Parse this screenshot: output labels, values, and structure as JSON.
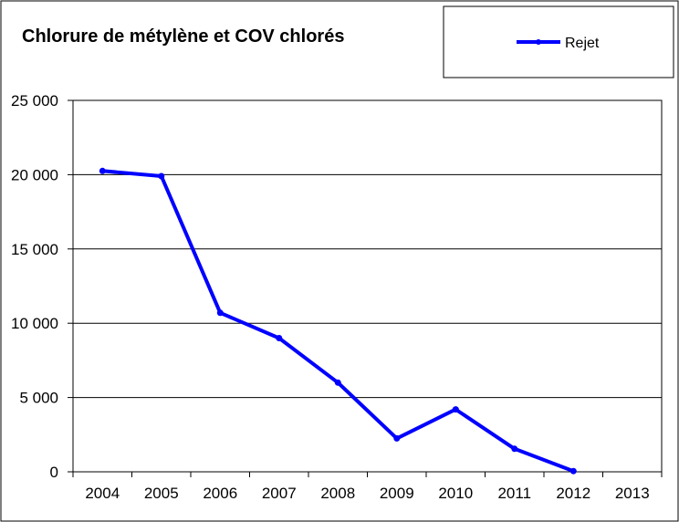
{
  "chart_data": {
    "type": "line",
    "title": "Chlorure de métylène et COV chlorés",
    "xlabel": "",
    "ylabel": "",
    "categories": [
      "2004",
      "2005",
      "2006",
      "2007",
      "2008",
      "2009",
      "2010",
      "2011",
      "2012",
      "2013"
    ],
    "series": [
      {
        "name": "Rejet",
        "color": "#0000ff",
        "values": [
          20250,
          19900,
          10700,
          9000,
          6000,
          2250,
          4200,
          1550,
          50,
          null
        ]
      }
    ],
    "ylim": [
      0,
      25000
    ],
    "yticks": [
      0,
      5000,
      10000,
      15000,
      20000,
      25000
    ],
    "ytick_labels": [
      "0",
      "5 000",
      "10 000",
      "15 000",
      "20 000",
      "25 000"
    ],
    "grid": "horizontal",
    "legend_position": "top-right"
  }
}
